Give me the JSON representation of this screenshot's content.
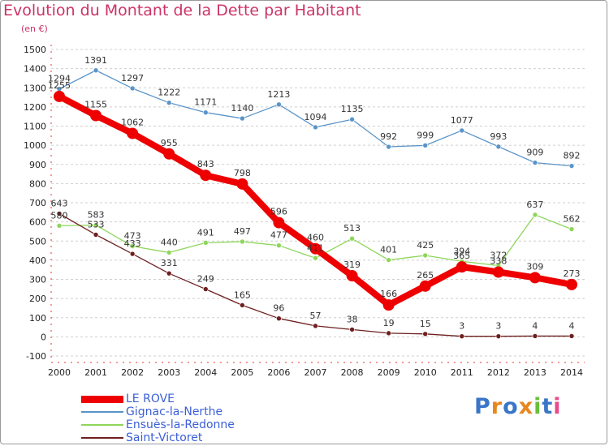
{
  "title": "Evolution du Montant de la Dette par Habitant",
  "subtitle": "(en €)",
  "logo_text": "Proxiti",
  "chart_data": {
    "type": "line",
    "title": "Evolution du Montant de la Dette par Habitant",
    "subtitle": "(en €)",
    "xlabel": "",
    "ylabel": "",
    "x": [
      "2000",
      "2001",
      "2002",
      "2003",
      "2004",
      "2005",
      "2006",
      "2007",
      "2008",
      "2009",
      "2010",
      "2011",
      "2012",
      "2013",
      "2014"
    ],
    "ylim": [
      -100,
      1500
    ],
    "ytick_step": 100,
    "grid": "dashed-horizontal",
    "legend_position": "bottom-left",
    "series": [
      {
        "name": "LE ROVE",
        "color": "#ee0000",
        "emphasis": true,
        "values": [
          1255,
          1155,
          1062,
          955,
          843,
          798,
          596,
          460,
          319,
          166,
          265,
          365,
          338,
          309,
          273
        ]
      },
      {
        "name": "Gignac-la-Nerthe",
        "color": "#5a94c8",
        "emphasis": false,
        "values": [
          1294,
          1391,
          1297,
          1222,
          1171,
          1140,
          1213,
          1094,
          1135,
          992,
          999,
          1077,
          993,
          909,
          892
        ]
      },
      {
        "name": "Ensuès-la-Redonne",
        "color": "#8ed65a",
        "emphasis": false,
        "values": [
          580,
          583,
          473,
          440,
          491,
          497,
          477,
          411,
          513,
          401,
          425,
          394,
          372,
          637,
          562
        ]
      },
      {
        "name": "Saint-Victoret",
        "color": "#6e1f1f",
        "emphasis": false,
        "values": [
          643,
          533,
          433,
          331,
          249,
          165,
          96,
          57,
          38,
          19,
          15,
          3,
          3,
          4,
          4
        ]
      }
    ]
  }
}
